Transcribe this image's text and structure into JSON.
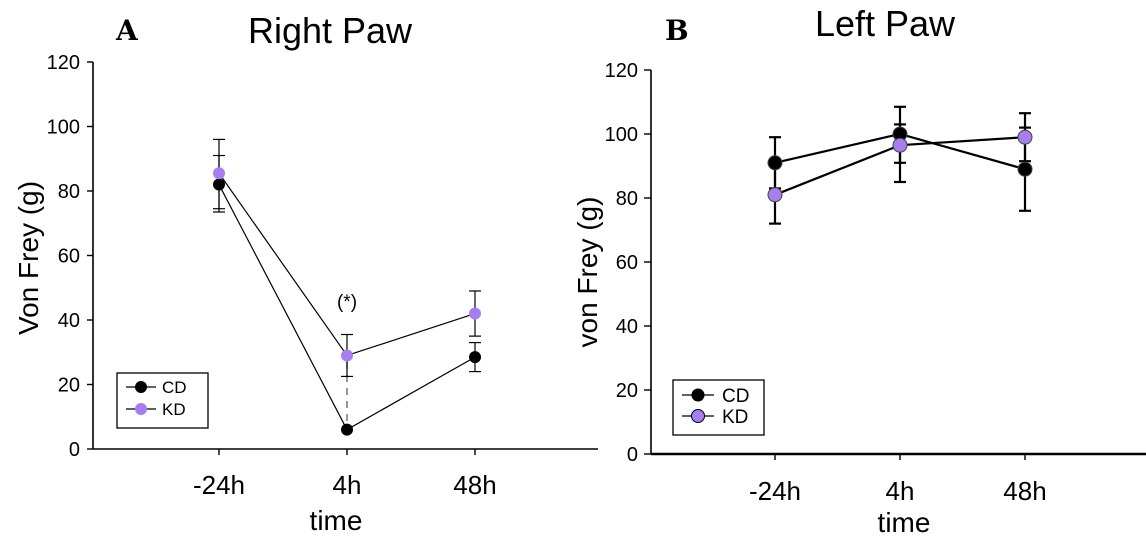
{
  "chart_data": [
    {
      "type": "line",
      "panel": "A",
      "title": "Right Paw",
      "xlabel": "time",
      "ylabel": "Von Frey (g)",
      "categories": [
        "-24h",
        "4h",
        "48h"
      ],
      "ylim": [
        0,
        120
      ],
      "yticks": [
        "0",
        "20",
        "40",
        "60",
        "80",
        "100",
        "120"
      ],
      "annotation": "(*)",
      "legend_position": "bottom-left",
      "series": [
        {
          "name": "CD",
          "color": "#000000",
          "values": [
            82,
            6,
            28.5
          ],
          "err_low": [
            73.5,
            6,
            24
          ],
          "err_high": [
            91,
            6,
            33
          ]
        },
        {
          "name": "KD",
          "color": "#a67ef0",
          "values": [
            85.5,
            29,
            42
          ],
          "err_low": [
            74.5,
            22.5,
            35
          ],
          "err_high": [
            96,
            35.5,
            49
          ]
        }
      ]
    },
    {
      "type": "line",
      "panel": "B",
      "title": "Left Paw",
      "xlabel": "time",
      "ylabel": "von Frey (g)",
      "categories": [
        "-24h",
        "4h",
        "48h"
      ],
      "ylim": [
        0,
        120
      ],
      "yticks": [
        "0",
        "20",
        "40",
        "60",
        "80",
        "100",
        "120"
      ],
      "legend_position": "bottom-left",
      "series": [
        {
          "name": "CD",
          "color": "#000000",
          "values": [
            91,
            100,
            89
          ],
          "err_low": [
            83,
            91,
            76
          ],
          "err_high": [
            99,
            108.5,
            102
          ]
        },
        {
          "name": "KD",
          "color": "#a67ef0",
          "values": [
            81,
            96.5,
            99
          ],
          "err_low": [
            72,
            85,
            91.5
          ],
          "err_high": [
            90,
            103,
            106.5
          ]
        }
      ]
    }
  ]
}
